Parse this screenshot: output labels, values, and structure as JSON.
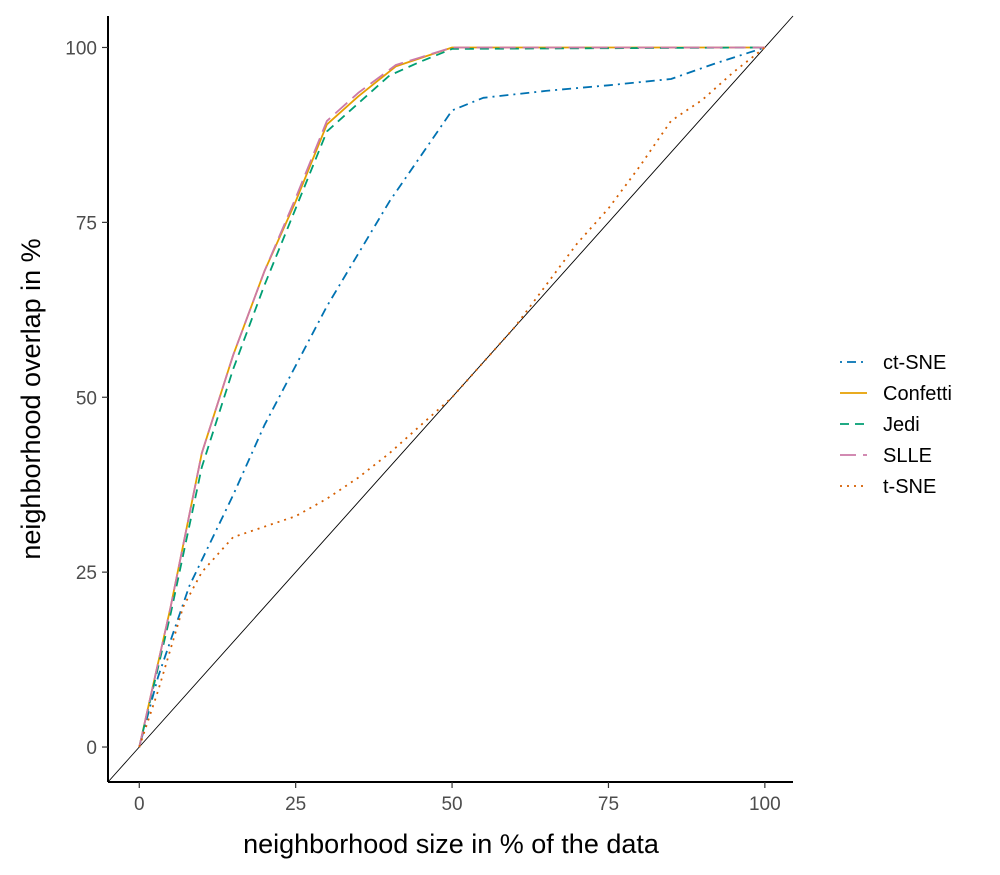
{
  "chart_data": {
    "type": "line",
    "xlabel": "neighborhood size in % of the data",
    "ylabel": "neighborhood overlap in %",
    "xlim": [
      -5,
      104.5
    ],
    "ylim": [
      -5,
      104.5
    ],
    "x_ticks": [
      0,
      25,
      50,
      75,
      100
    ],
    "y_ticks": [
      0,
      25,
      50,
      75,
      100
    ],
    "grid": false,
    "legend_position": "right",
    "reference_line": "identity diagonal (y = x)",
    "series": [
      {
        "name": "ct-SNE",
        "color": "#0072B2",
        "linestyle": "dotdash",
        "points": [
          [
            0,
            0
          ],
          [
            3,
            10
          ],
          [
            8,
            23
          ],
          [
            15,
            36
          ],
          [
            20,
            46
          ],
          [
            30,
            63
          ],
          [
            40,
            78
          ],
          [
            50,
            91
          ],
          [
            55,
            92.8
          ],
          [
            65,
            93.8
          ],
          [
            75,
            94.6
          ],
          [
            85,
            95.5
          ],
          [
            92,
            97.7
          ],
          [
            100,
            100
          ]
        ]
      },
      {
        "name": "Confetti",
        "color": "#E69F00",
        "linestyle": "solid",
        "points": [
          [
            0,
            0
          ],
          [
            5,
            20
          ],
          [
            10,
            42
          ],
          [
            15,
            56
          ],
          [
            20,
            68
          ],
          [
            25,
            78
          ],
          [
            30,
            89
          ],
          [
            35,
            93
          ],
          [
            41,
            97.3
          ],
          [
            45,
            98.5
          ],
          [
            50,
            100
          ],
          [
            100,
            100
          ]
        ]
      },
      {
        "name": "Jedi",
        "color": "#009E73",
        "linestyle": "dashed",
        "points": [
          [
            0,
            0
          ],
          [
            5,
            19
          ],
          [
            10,
            40
          ],
          [
            15,
            54
          ],
          [
            20,
            66
          ],
          [
            25,
            77
          ],
          [
            30,
            88
          ],
          [
            35,
            92
          ],
          [
            40,
            96
          ],
          [
            45,
            98
          ],
          [
            50,
            99.8
          ],
          [
            100,
            100
          ]
        ]
      },
      {
        "name": "SLLE",
        "color": "#CC79A7",
        "linestyle": "longdash",
        "points": [
          [
            0,
            0
          ],
          [
            5,
            20
          ],
          [
            10,
            42
          ],
          [
            15,
            56
          ],
          [
            20,
            68
          ],
          [
            25,
            78.5
          ],
          [
            30,
            89.5
          ],
          [
            35,
            93.5
          ],
          [
            41,
            97.5
          ],
          [
            45,
            98.6
          ],
          [
            50,
            100
          ],
          [
            100,
            100
          ]
        ]
      },
      {
        "name": "t-SNE",
        "color": "#D55E00",
        "linestyle": "dotted",
        "points": [
          [
            0,
            0
          ],
          [
            3,
            8
          ],
          [
            7,
            20
          ],
          [
            10,
            25
          ],
          [
            15,
            30
          ],
          [
            20,
            31.5
          ],
          [
            25,
            33
          ],
          [
            30,
            35.5
          ],
          [
            35,
            38.5
          ],
          [
            40,
            42
          ],
          [
            45,
            46
          ],
          [
            50,
            50
          ],
          [
            55,
            55
          ],
          [
            60,
            60
          ],
          [
            65,
            66
          ],
          [
            70,
            72
          ],
          [
            75,
            77
          ],
          [
            80,
            83
          ],
          [
            85,
            89.5
          ],
          [
            90,
            92.5
          ],
          [
            95,
            96.5
          ],
          [
            100,
            100
          ]
        ]
      }
    ]
  }
}
